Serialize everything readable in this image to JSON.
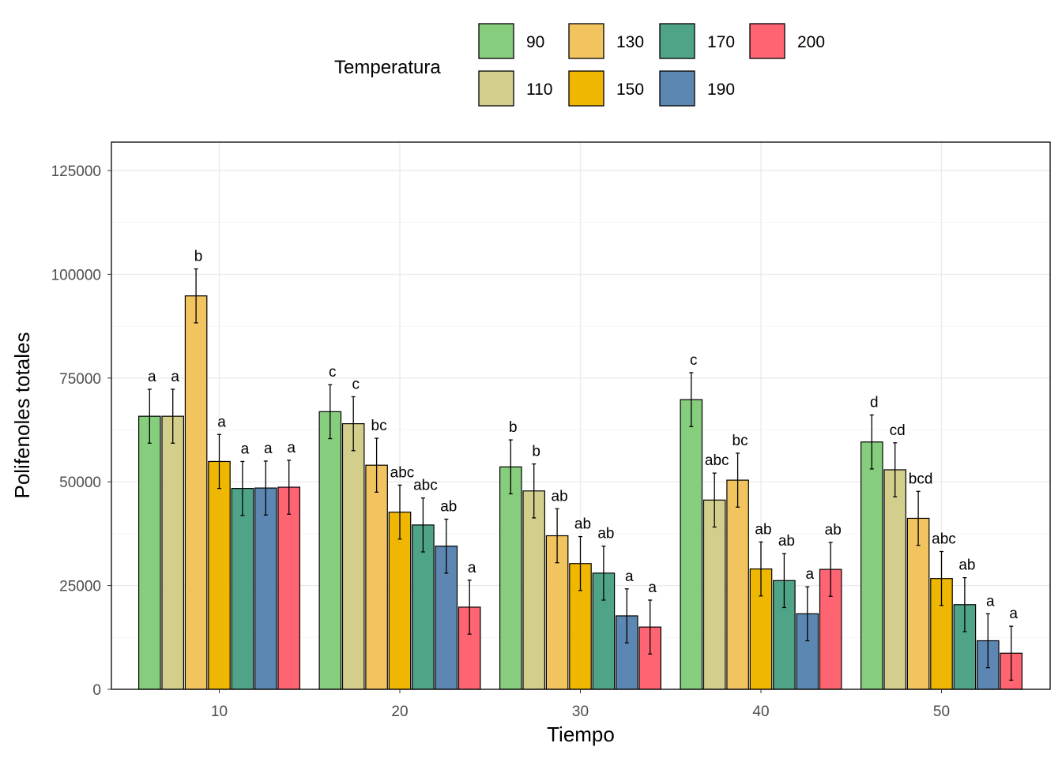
{
  "chart_data": {
    "type": "bar",
    "xlabel": "Tiempo",
    "ylabel": "Polifenoles totales",
    "categories": [
      "10",
      "20",
      "30",
      "40",
      "50"
    ],
    "ylim": [
      0,
      130000
    ],
    "yticks": [
      0,
      25000,
      50000,
      75000,
      100000,
      125000
    ],
    "ytick_labels": [
      "0",
      "25000",
      "50000",
      "75000",
      "100000",
      "125000"
    ],
    "grid": true,
    "legend": {
      "title": "Temperatura",
      "position": "top"
    },
    "series": [
      {
        "name": "90",
        "color": "#86CD7D",
        "values": [
          65800,
          66900,
          53600,
          69800,
          59600
        ],
        "errors": [
          6500,
          6500,
          6500,
          6500,
          6500
        ],
        "letters": [
          "a",
          "c",
          "b",
          "c",
          "d"
        ]
      },
      {
        "name": "110",
        "color": "#D3CE8B",
        "values": [
          65800,
          64000,
          47800,
          45600,
          52900
        ],
        "errors": [
          6500,
          6500,
          6500,
          6500,
          6500
        ],
        "letters": [
          "a",
          "c",
          "b",
          "abc",
          "cd"
        ]
      },
      {
        "name": "130",
        "color": "#F2C45F",
        "values": [
          94800,
          54000,
          37000,
          50400,
          41200
        ],
        "errors": [
          6500,
          6500,
          6500,
          6500,
          6500
        ],
        "letters": [
          "b",
          "bc",
          "ab",
          "bc",
          "bcd"
        ]
      },
      {
        "name": "150",
        "color": "#EFB701",
        "values": [
          54900,
          42700,
          30300,
          29000,
          26700
        ],
        "errors": [
          6500,
          6500,
          6500,
          6500,
          6500
        ],
        "letters": [
          "a",
          "abc",
          "ab",
          "ab",
          "abc"
        ]
      },
      {
        "name": "170",
        "color": "#4FA387",
        "values": [
          48400,
          39600,
          28000,
          26200,
          20400
        ],
        "errors": [
          6500,
          6500,
          6500,
          6500,
          6500
        ],
        "letters": [
          "a",
          "abc",
          "ab",
          "ab",
          "ab"
        ]
      },
      {
        "name": "190",
        "color": "#5B87B2",
        "values": [
          48500,
          34500,
          17700,
          18200,
          11700
        ],
        "errors": [
          6500,
          6500,
          6500,
          6500,
          6500
        ],
        "letters": [
          "a",
          "ab",
          "a",
          "a",
          "a"
        ]
      },
      {
        "name": "200",
        "color": "#FE6471",
        "values": [
          48700,
          19800,
          15000,
          28900,
          8700
        ],
        "errors": [
          6500,
          6500,
          6500,
          6500,
          6500
        ],
        "letters": [
          "a",
          "a",
          "a",
          "ab",
          "a"
        ]
      }
    ]
  }
}
